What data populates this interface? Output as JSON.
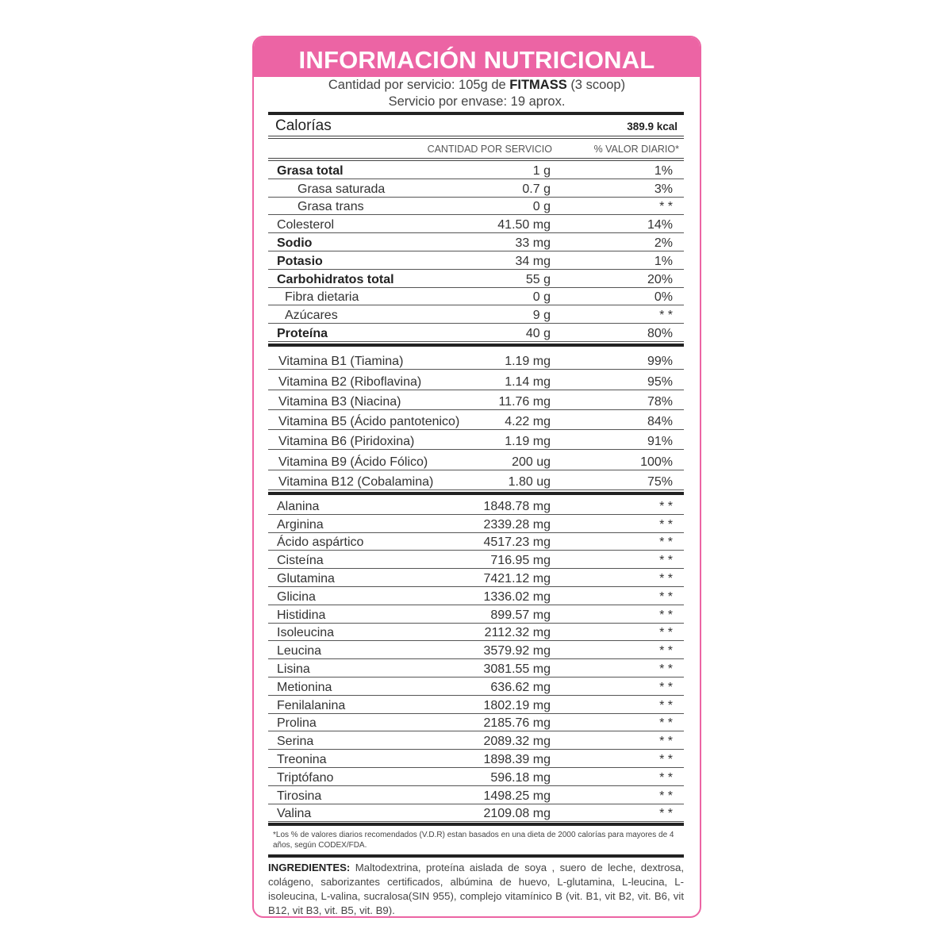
{
  "title": "INFORMACIÓN NUTRICIONAL",
  "serving": {
    "prefix": "Cantidad por servicio: 105g de",
    "brand": "FITMASS",
    "suffix": "(3 scoop)",
    "per_container": "Servicio por envase: 19 aprox."
  },
  "calories": {
    "label": "Calorías",
    "value": "389.9 kcal"
  },
  "columns": {
    "amount": "CANTIDAD POR SERVICIO",
    "daily": "% VALOR DIARIO*"
  },
  "macros": [
    {
      "name": "Grasa total",
      "amount": "1 g",
      "daily": "1%",
      "bold": true,
      "indent": 0
    },
    {
      "name": "Grasa saturada",
      "amount": "0.7 g",
      "daily": "3%",
      "bold": false,
      "indent": 2
    },
    {
      "name": "Grasa trans",
      "amount": "0 g",
      "daily": "* *",
      "bold": false,
      "indent": 2
    },
    {
      "name": "Colesterol",
      "amount": "41.50 mg",
      "daily": "14%",
      "bold": false,
      "indent": 0
    },
    {
      "name": "Sodio",
      "amount": "33 mg",
      "daily": "2%",
      "bold": true,
      "indent": 0
    },
    {
      "name": "Potasio",
      "amount": "34 mg",
      "daily": "1%",
      "bold": true,
      "indent": 0
    },
    {
      "name": "Carbohidratos total",
      "amount": "55 g",
      "daily": "20%",
      "bold": true,
      "indent": 0
    },
    {
      "name": "Fibra dietaria",
      "amount": "0 g",
      "daily": "0%",
      "bold": false,
      "indent": 1
    },
    {
      "name": "Azúcares",
      "amount": "9 g",
      "daily": "* *",
      "bold": false,
      "indent": 1
    },
    {
      "name": "Proteína",
      "amount": "40 g",
      "daily": "80%",
      "bold": true,
      "indent": 0
    }
  ],
  "vitamins": [
    {
      "name": "Vitamina B1 (Tiamina)",
      "amount": "1.19 mg",
      "daily": "99%"
    },
    {
      "name": "Vitamina B2 (Riboflavina)",
      "amount": "1.14 mg",
      "daily": "95%"
    },
    {
      "name": "Vitamina B3 (Niacina)",
      "amount": "11.76 mg",
      "daily": "78%"
    },
    {
      "name": "Vitamina B5 (Ácido pantotenico)",
      "amount": "4.22 mg",
      "daily": "84%"
    },
    {
      "name": "Vitamina B6 (Piridoxina)",
      "amount": "1.19 mg",
      "daily": "91%"
    },
    {
      "name": "Vitamina B9 (Ácido Fólico)",
      "amount": "200 ug",
      "daily": "100%"
    },
    {
      "name": "Vitamina B12 (Cobalamina)",
      "amount": "1.80 ug",
      "daily": "75%"
    }
  ],
  "amino_acids": [
    {
      "name": "Alanina",
      "amount": "1848.78 mg",
      "daily": "* *"
    },
    {
      "name": "Arginina",
      "amount": "2339.28 mg",
      "daily": "* *"
    },
    {
      "name": "Ácido aspártico",
      "amount": "4517.23 mg",
      "daily": "* *"
    },
    {
      "name": "Cisteína",
      "amount": "716.95 mg",
      "daily": "* *"
    },
    {
      "name": "Glutamina",
      "amount": "7421.12 mg",
      "daily": "* *"
    },
    {
      "name": "Glicina",
      "amount": "1336.02 mg",
      "daily": "* *"
    },
    {
      "name": "Histidina",
      "amount": "899.57 mg",
      "daily": "* *"
    },
    {
      "name": "Isoleucina",
      "amount": "2112.32 mg",
      "daily": "* *"
    },
    {
      "name": "Leucina",
      "amount": "3579.92 mg",
      "daily": "* *"
    },
    {
      "name": "Lisina",
      "amount": "3081.55 mg",
      "daily": "* *"
    },
    {
      "name": "Metionina",
      "amount": "636.62 mg",
      "daily": "* *"
    },
    {
      "name": "Fenilalanina",
      "amount": "1802.19 mg",
      "daily": "* *"
    },
    {
      "name": "Prolina",
      "amount": "2185.76 mg",
      "daily": "* *"
    },
    {
      "name": "Serina",
      "amount": "2089.32 mg",
      "daily": "* *"
    },
    {
      "name": "Treonina",
      "amount": "1898.39 mg",
      "daily": "* *"
    },
    {
      "name": "Triptófano",
      "amount": "596.18 mg",
      "daily": "* *"
    },
    {
      "name": "Tirosina",
      "amount": "1498.25 mg",
      "daily": "* *"
    },
    {
      "name": "Valina",
      "amount": "2109.08 mg",
      "daily": "* *"
    }
  ],
  "footnote": "*Los % de valores diarios recomendados (V.D.R) estan basados en una dieta de 2000 calorías para mayores de 4 años, según CODEX/FDA.",
  "ingredients": {
    "label": "INGREDIENTES:",
    "text": "Maltodextrina, proteína aislada de soya , suero de leche, dextrosa, colágeno, saborizantes certificados, albúmina de huevo, L-glutamina, L-leucina, L-isoleucina, L-valina, sucralosa(SIN 955), complejo vitamínico B (vit. B1, vit B2, vit. B6, vit B12, vit B3, vit. B5, vit. B9)."
  },
  "colors": {
    "accent": "#ec64a4",
    "rule": "#222222"
  }
}
